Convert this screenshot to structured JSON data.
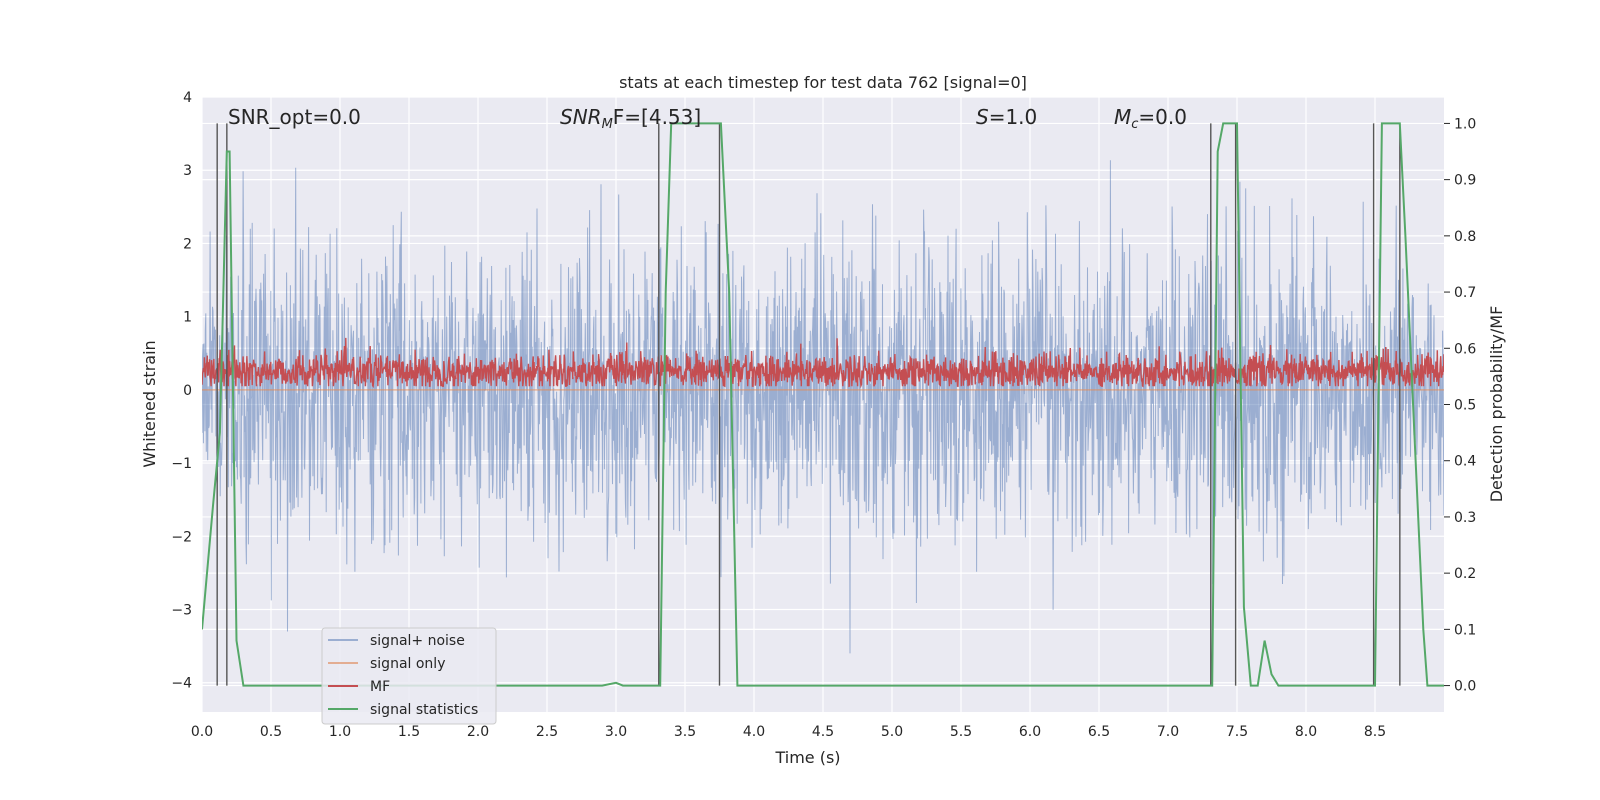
{
  "chart_data": {
    "type": "line",
    "title": "stats at each timestep for test data 762 [signal=0]",
    "xlabel": "Time (s)",
    "ylabel": "Whitened strain",
    "ylabel_right": "Detection probability/MF",
    "xlim": [
      0.0,
      9.0
    ],
    "ylim": [
      -4.4,
      4.0
    ],
    "ylim_right": [
      -0.047,
      1.047
    ],
    "x_ticks": [
      "0.0",
      "0.5",
      "1.0",
      "1.5",
      "2.0",
      "2.5",
      "3.0",
      "3.5",
      "4.0",
      "4.5",
      "5.0",
      "5.5",
      "6.0",
      "6.5",
      "7.0",
      "7.5",
      "8.0",
      "8.5"
    ],
    "x_tick_values": [
      0.0,
      0.5,
      1.0,
      1.5,
      2.0,
      2.5,
      3.0,
      3.5,
      4.0,
      4.5,
      5.0,
      5.5,
      6.0,
      6.5,
      7.0,
      7.5,
      8.0,
      8.5
    ],
    "y_ticks": [
      "4",
      "3",
      "2",
      "1",
      "0",
      "−1",
      "−2",
      "−3",
      "−4"
    ],
    "y_tick_values": [
      4,
      3,
      2,
      1,
      0,
      -1,
      -2,
      -3,
      -4
    ],
    "y_ticks_right": [
      "1.0",
      "0.9",
      "0.8",
      "0.7",
      "0.6",
      "0.5",
      "0.4",
      "0.3",
      "0.2",
      "0.1",
      "0.0"
    ],
    "y_tick_values_right": [
      1.0,
      0.9,
      0.8,
      0.7,
      0.6,
      0.5,
      0.4,
      0.3,
      0.2,
      0.1,
      0.0
    ],
    "grid": true,
    "legend_position": "lower-left",
    "annotations": {
      "snr_opt": "SNR_opt=0.0",
      "snr_mf_main": "SNR",
      "snr_mf_sub": "M",
      "snr_mf_rest": "F=[4.53]",
      "s_italic": "S",
      "s_rest": "=1.0",
      "mc_italic": "M",
      "mc_sub": "c",
      "mc_rest": "=0.0"
    },
    "series": [
      {
        "name": "signal+ noise",
        "color": "#4c72b0",
        "axis": "left",
        "kind": "noise",
        "std": 1.0,
        "range": [
          -3.6,
          3.6
        ]
      },
      {
        "name": "signal only",
        "color": "#dd8452",
        "axis": "left",
        "kind": "flat",
        "value": 0.0
      },
      {
        "name": "MF",
        "color": "#c44e52",
        "axis": "left",
        "kind": "noise",
        "mean": 0.25,
        "std": 0.12,
        "range": [
          0.05,
          0.8
        ]
      },
      {
        "name": "signal statistics",
        "color": "#55a868",
        "axis": "right",
        "kind": "line",
        "x": [
          0.0,
          0.08,
          0.13,
          0.18,
          0.2,
          0.25,
          0.3,
          2.9,
          3.0,
          3.05,
          3.32,
          3.36,
          3.4,
          3.76,
          3.82,
          3.88,
          7.32,
          7.36,
          7.4,
          7.5,
          7.55,
          7.6,
          7.65,
          7.7,
          7.75,
          7.8,
          7.85,
          7.9,
          8.5,
          8.55,
          8.58,
          8.68,
          8.72,
          8.85,
          8.88,
          9.0
        ],
        "y": [
          0.1,
          0.32,
          0.45,
          0.95,
          0.95,
          0.08,
          0.0,
          0.0,
          0.005,
          0.0,
          0.0,
          0.7,
          1.0,
          1.0,
          0.7,
          0.0,
          0.0,
          0.95,
          1.0,
          1.0,
          0.14,
          0.0,
          0.0,
          0.08,
          0.02,
          0.0,
          0.0,
          0.0,
          0.0,
          1.0,
          1.0,
          1.0,
          0.8,
          0.1,
          0.0,
          0.0
        ]
      }
    ],
    "vertical_markers": [
      0.11,
      0.18,
      3.31,
      3.75,
      7.31,
      7.49,
      8.49,
      8.68
    ]
  }
}
